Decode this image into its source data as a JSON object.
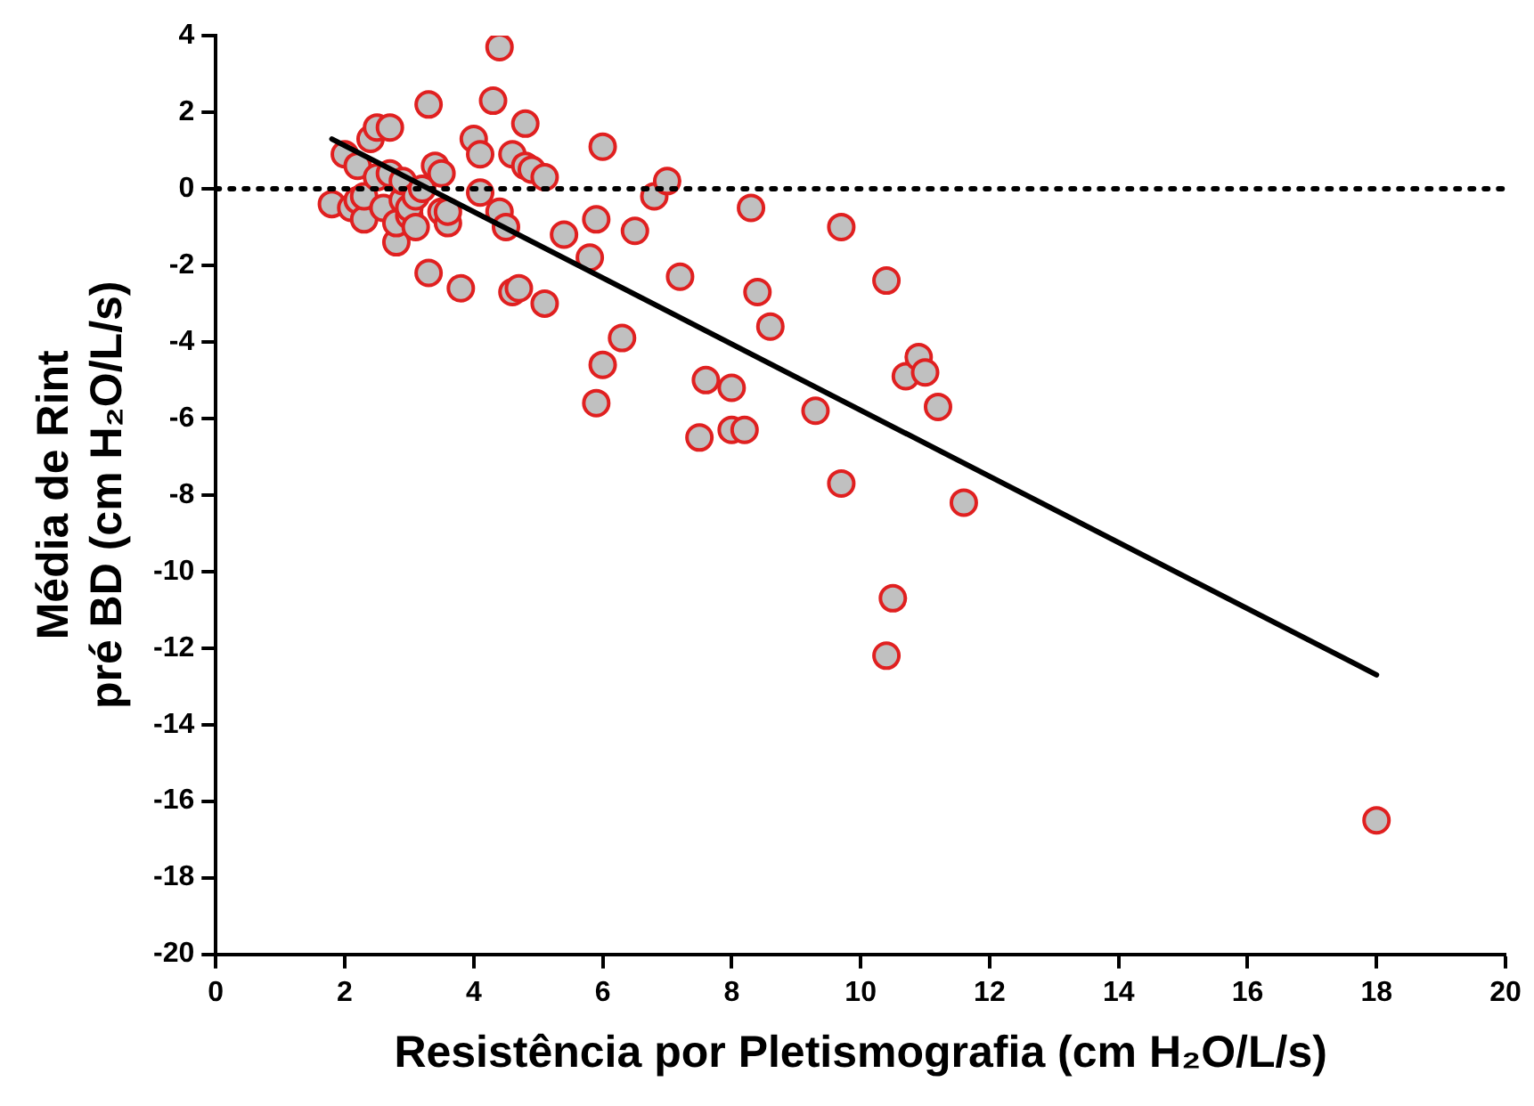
{
  "chart_data": {
    "type": "scatter",
    "xlabel": "Resistência por Pletismografia (cm H₂O/L/s)",
    "ylabel": [
      "Média de Rint",
      "pré BD (cm H₂O/L/s)"
    ],
    "xlim": [
      0,
      20
    ],
    "xticks": [
      0,
      2,
      4,
      6,
      8,
      10,
      12,
      14,
      16,
      18,
      20
    ],
    "ylim": [
      -20,
      4
    ],
    "yticks": [
      -20,
      -18,
      -16,
      -14,
      -12,
      -10,
      -8,
      -6,
      -4,
      -2,
      0,
      2,
      4
    ],
    "grid": false,
    "legend": false,
    "ref_lines": [
      {
        "axis": "y",
        "value": 0,
        "line_style": "dotted",
        "color": "#000000"
      }
    ],
    "series": [
      {
        "color": "#e02020",
        "marker": "circle",
        "x": [
          1.8,
          2.0,
          2.1,
          2.2,
          2.2,
          2.3,
          2.3,
          2.4,
          2.5,
          2.5,
          2.6,
          2.7,
          2.7,
          2.8,
          2.8,
          2.9,
          2.9,
          3.0,
          3.0,
          3.1,
          3.1,
          3.2,
          3.3,
          3.3,
          3.4,
          3.5,
          3.5,
          3.6,
          3.6,
          3.8,
          4.0,
          4.1,
          4.1,
          4.3,
          4.4,
          4.4,
          4.5,
          4.6,
          4.6,
          4.7,
          4.8,
          4.8,
          4.9,
          5.1,
          5.1,
          5.4,
          5.8,
          5.9,
          5.9,
          6.0,
          6.0,
          6.3,
          6.5,
          6.8,
          7.0,
          7.2,
          7.5,
          7.6,
          8.0,
          8.0,
          8.2,
          8.3,
          8.4,
          8.6,
          9.3,
          9.7,
          9.7,
          10.4,
          10.4,
          10.5,
          10.7,
          10.9,
          11.0,
          11.2,
          11.6,
          18.0
        ],
        "values": [
          -0.4,
          0.9,
          -0.5,
          -0.3,
          0.6,
          -0.8,
          -0.2,
          1.3,
          1.6,
          0.3,
          -0.5,
          1.6,
          0.4,
          -1.4,
          -0.9,
          -0.3,
          0.2,
          -0.7,
          -0.5,
          -1.0,
          -0.2,
          0,
          -2.2,
          2.2,
          0.6,
          -0.6,
          0.4,
          -0.9,
          -0.6,
          -2.6,
          1.3,
          0.9,
          -0.1,
          2.3,
          3.7,
          -0.6,
          -1.0,
          0.9,
          -2.7,
          -2.6,
          1.7,
          0.6,
          0.5,
          -3.0,
          0.3,
          -1.2,
          -1.8,
          -0.8,
          -5.6,
          1.1,
          -4.6,
          -3.9,
          -1.1,
          -0.2,
          0.2,
          -2.3,
          -6.5,
          -5.0,
          -5.2,
          -6.3,
          -6.3,
          -0.5,
          -2.7,
          -3.6,
          -5.8,
          -1.0,
          -7.7,
          -2.4,
          -12.2,
          -10.7,
          -4.9,
          -4.4,
          -4.8,
          -5.7,
          -8.2,
          -16.5
        ]
      },
      {
        "type": "line",
        "color": "#000000",
        "marker": "none",
        "line_style": "solid",
        "x": [
          1.8,
          18.0
        ],
        "values": [
          1.3,
          -12.7
        ]
      }
    ]
  }
}
